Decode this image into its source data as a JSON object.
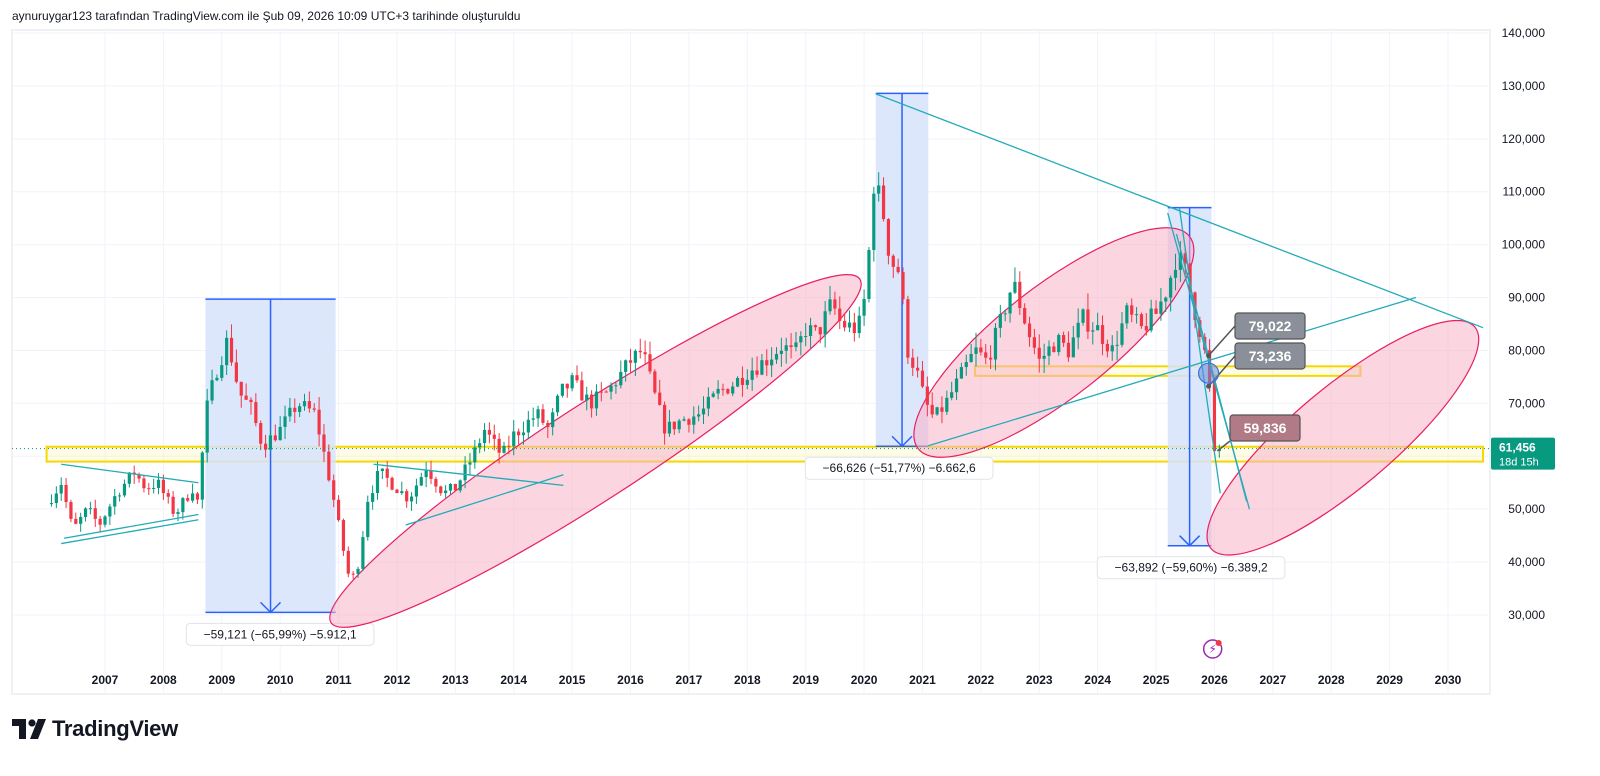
{
  "header": {
    "caption": "aynuruygar123 tarafından TradingView.com ile Şub 09, 2026 10:09 UTC+3 tarihinde oluşturuldu"
  },
  "branding": {
    "name": "TradingView"
  },
  "colors": {
    "up": "#089981",
    "down": "#f23645",
    "trend": "#22abb8",
    "zone": "#f5d800",
    "ellipse_fill": "#f7b3c6",
    "ellipse_stroke": "#e91e63",
    "measure": "#2962ff",
    "measure_fill": "#d6e3fb",
    "label_gray": "#8a8f99",
    "price_tag": "#089981"
  },
  "chart_data": {
    "type": "candlestick",
    "timeframe": "monthly",
    "x_range": [
      2006.0,
      2030.6
    ],
    "ylim": [
      25000,
      140000
    ],
    "y_ticks": [
      {
        "value": 140000,
        "label": "140,000"
      },
      {
        "value": 130000,
        "label": "130,000"
      },
      {
        "value": 120000,
        "label": "120,000"
      },
      {
        "value": 110000,
        "label": "110,000"
      },
      {
        "value": 100000,
        "label": "100,000"
      },
      {
        "value": 90000,
        "label": "90,000"
      },
      {
        "value": 80000,
        "label": "80,000"
      },
      {
        "value": 70000,
        "label": "70,000"
      },
      {
        "value": 60000,
        "label": "60,000"
      },
      {
        "value": 50000,
        "label": "50,000"
      },
      {
        "value": 40000,
        "label": "40,000"
      },
      {
        "value": 30000,
        "label": "30,000"
      }
    ],
    "x_ticks": [
      {
        "value": 2007,
        "label": "2007"
      },
      {
        "value": 2008,
        "label": "2008"
      },
      {
        "value": 2009,
        "label": "2009"
      },
      {
        "value": 2010,
        "label": "2010"
      },
      {
        "value": 2011,
        "label": "2011"
      },
      {
        "value": 2012,
        "label": "2012"
      },
      {
        "value": 2013,
        "label": "2013"
      },
      {
        "value": 2014,
        "label": "2014"
      },
      {
        "value": 2015,
        "label": "2015"
      },
      {
        "value": 2016,
        "label": "2016"
      },
      {
        "value": 2017,
        "label": "2017"
      },
      {
        "value": 2018,
        "label": "2018"
      },
      {
        "value": 2019,
        "label": "2019"
      },
      {
        "value": 2020,
        "label": "2020"
      },
      {
        "value": 2021,
        "label": "2021"
      },
      {
        "value": 2022,
        "label": "2022"
      },
      {
        "value": 2023,
        "label": "2023"
      },
      {
        "value": 2024,
        "label": "2024"
      },
      {
        "value": 2025,
        "label": "2025"
      },
      {
        "value": 2026,
        "label": "2026"
      },
      {
        "value": 2027,
        "label": "2027"
      },
      {
        "value": 2028,
        "label": "2028"
      },
      {
        "value": 2029,
        "label": "2029"
      },
      {
        "value": 2030,
        "label": "2030"
      }
    ],
    "price_path": [
      [
        2006.0,
        51000
      ],
      [
        2006.25,
        55000
      ],
      [
        2006.45,
        46000
      ],
      [
        2006.7,
        50000
      ],
      [
        2006.9,
        47000
      ],
      [
        2007.2,
        53000
      ],
      [
        2007.5,
        57000
      ],
      [
        2007.7,
        54000
      ],
      [
        2007.9,
        55000
      ],
      [
        2008.2,
        49000
      ],
      [
        2008.5,
        54000
      ],
      [
        2008.6,
        51000
      ],
      [
        2008.72,
        68000
      ],
      [
        2008.9,
        76000
      ],
      [
        2009.1,
        82000
      ],
      [
        2009.3,
        72000
      ],
      [
        2009.5,
        69000
      ],
      [
        2009.7,
        62000
      ],
      [
        2010.0,
        65000
      ],
      [
        2010.3,
        70000
      ],
      [
        2010.6,
        68000
      ],
      [
        2010.8,
        58000
      ],
      [
        2010.95,
        50000
      ],
      [
        2011.05,
        44000
      ],
      [
        2011.2,
        36000
      ],
      [
        2011.35,
        40000
      ],
      [
        2011.5,
        52000
      ],
      [
        2011.7,
        57000
      ],
      [
        2011.9,
        55000
      ],
      [
        2012.2,
        52000
      ],
      [
        2012.5,
        58000
      ],
      [
        2012.8,
        53000
      ],
      [
        2013.0,
        54000
      ],
      [
        2013.3,
        60000
      ],
      [
        2013.5,
        65000
      ],
      [
        2013.8,
        60000
      ],
      [
        2014.0,
        64000
      ],
      [
        2014.4,
        68000
      ],
      [
        2014.6,
        65000
      ],
      [
        2014.8,
        72000
      ],
      [
        2015.0,
        74000
      ],
      [
        2015.3,
        70000
      ],
      [
        2015.6,
        72000
      ],
      [
        2016.0,
        78000
      ],
      [
        2016.2,
        80000
      ],
      [
        2016.45,
        70000
      ],
      [
        2016.6,
        65000
      ],
      [
        2016.9,
        67000
      ],
      [
        2017.2,
        68000
      ],
      [
        2017.5,
        72000
      ],
      [
        2017.8,
        74000
      ],
      [
        2018.0,
        76000
      ],
      [
        2018.3,
        78000
      ],
      [
        2018.6,
        81000
      ],
      [
        2018.8,
        79000
      ],
      [
        2019.0,
        84000
      ],
      [
        2019.2,
        83000
      ],
      [
        2019.45,
        89000
      ],
      [
        2019.6,
        85000
      ],
      [
        2019.9,
        84000
      ],
      [
        2020.05,
        92000
      ],
      [
        2020.15,
        112000
      ],
      [
        2020.3,
        108000
      ],
      [
        2020.45,
        97000
      ],
      [
        2020.6,
        95000
      ],
      [
        2020.75,
        80000
      ],
      [
        2020.9,
        76000
      ],
      [
        2021.05,
        70000
      ],
      [
        2021.2,
        67000
      ],
      [
        2021.4,
        70000
      ],
      [
        2021.7,
        76000
      ],
      [
        2021.9,
        80000
      ],
      [
        2022.1,
        78000
      ],
      [
        2022.3,
        84000
      ],
      [
        2022.55,
        93000
      ],
      [
        2022.8,
        84000
      ],
      [
        2023.0,
        78000
      ],
      [
        2023.3,
        82000
      ],
      [
        2023.5,
        80000
      ],
      [
        2023.75,
        86000
      ],
      [
        2024.0,
        84000
      ],
      [
        2024.25,
        80000
      ],
      [
        2024.5,
        87000
      ],
      [
        2024.75,
        84000
      ],
      [
        2025.0,
        87000
      ],
      [
        2025.2,
        92000
      ],
      [
        2025.35,
        98000
      ],
      [
        2025.5,
        95000
      ],
      [
        2025.65,
        88000
      ],
      [
        2025.8,
        82000
      ],
      [
        2025.92,
        73000
      ],
      [
        2026.0,
        60000
      ],
      [
        2026.1,
        61456
      ]
    ],
    "current_price": {
      "value": 61456,
      "label": "61,456",
      "countdown": "18d 15h"
    },
    "ellipse_label": "59,836",
    "level_callouts": [
      {
        "value": 79022,
        "label": "79,022"
      },
      {
        "value": 73236,
        "label": "73,236"
      }
    ],
    "horizontal_zones": [
      {
        "from": 59000,
        "to": 61800,
        "x_start": 2006.0,
        "x_end": 2030.6
      },
      {
        "from": 75200,
        "to": 77000,
        "x_start": 2021.9,
        "x_end": 2028.5
      }
    ],
    "measures": [
      {
        "x_start": 2008.72,
        "x_end": 2010.95,
        "top": 89700,
        "bottom": 30500,
        "label": "−59,121 (−65,99%) −5.912,1",
        "label_x": 2010.0
      },
      {
        "x_start": 2020.2,
        "x_end": 2021.1,
        "top": 128600,
        "bottom": 61900,
        "label": "−66,626 (−51,77%) −6.662,6",
        "label_x": 2020.6
      },
      {
        "x_start": 2025.2,
        "x_end": 2025.95,
        "top": 107000,
        "bottom": 43100,
        "label": "−63,892 (−59,60%) −6.389,2",
        "label_x": 2025.6
      }
    ],
    "trendlines": [
      {
        "from": [
          2006.25,
          58500
        ],
        "to": [
          2008.6,
          55000
        ]
      },
      {
        "from": [
          2006.25,
          43500
        ],
        "to": [
          2008.6,
          48000
        ]
      },
      {
        "from": [
          2006.3,
          44500
        ],
        "to": [
          2008.6,
          49000
        ]
      },
      {
        "from": [
          2011.6,
          58500
        ],
        "to": [
          2014.85,
          54500
        ]
      },
      {
        "from": [
          2012.15,
          47000
        ],
        "to": [
          2014.85,
          56500
        ]
      },
      {
        "from": [
          2020.2,
          128500
        ],
        "to": [
          2030.6,
          84300
        ]
      },
      {
        "from": [
          2021.1,
          62000
        ],
        "to": [
          2029.45,
          90000
        ]
      },
      {
        "from": [
          2025.2,
          106000
        ],
        "to": [
          2026.6,
          50000
        ]
      },
      {
        "from": [
          2025.35,
          102000
        ],
        "to": [
          2026.55,
          51500
        ]
      },
      {
        "from": [
          2025.4,
          107000
        ],
        "to": [
          2026.1,
          53000
        ]
      }
    ],
    "ellipses": [
      {
        "center": [
          2015.4,
          61000
        ],
        "rx_years": 5.4,
        "ry_price": 9000,
        "angle_deg": -33
      },
      {
        "center": [
          2023.25,
          81500
        ],
        "rx_years": 2.95,
        "ry_price": 10500,
        "angle_deg": -38
      },
      {
        "center": [
          2028.2,
          63500
        ],
        "rx_years": 2.95,
        "ry_price": 9500,
        "angle_deg": -40
      }
    ]
  }
}
